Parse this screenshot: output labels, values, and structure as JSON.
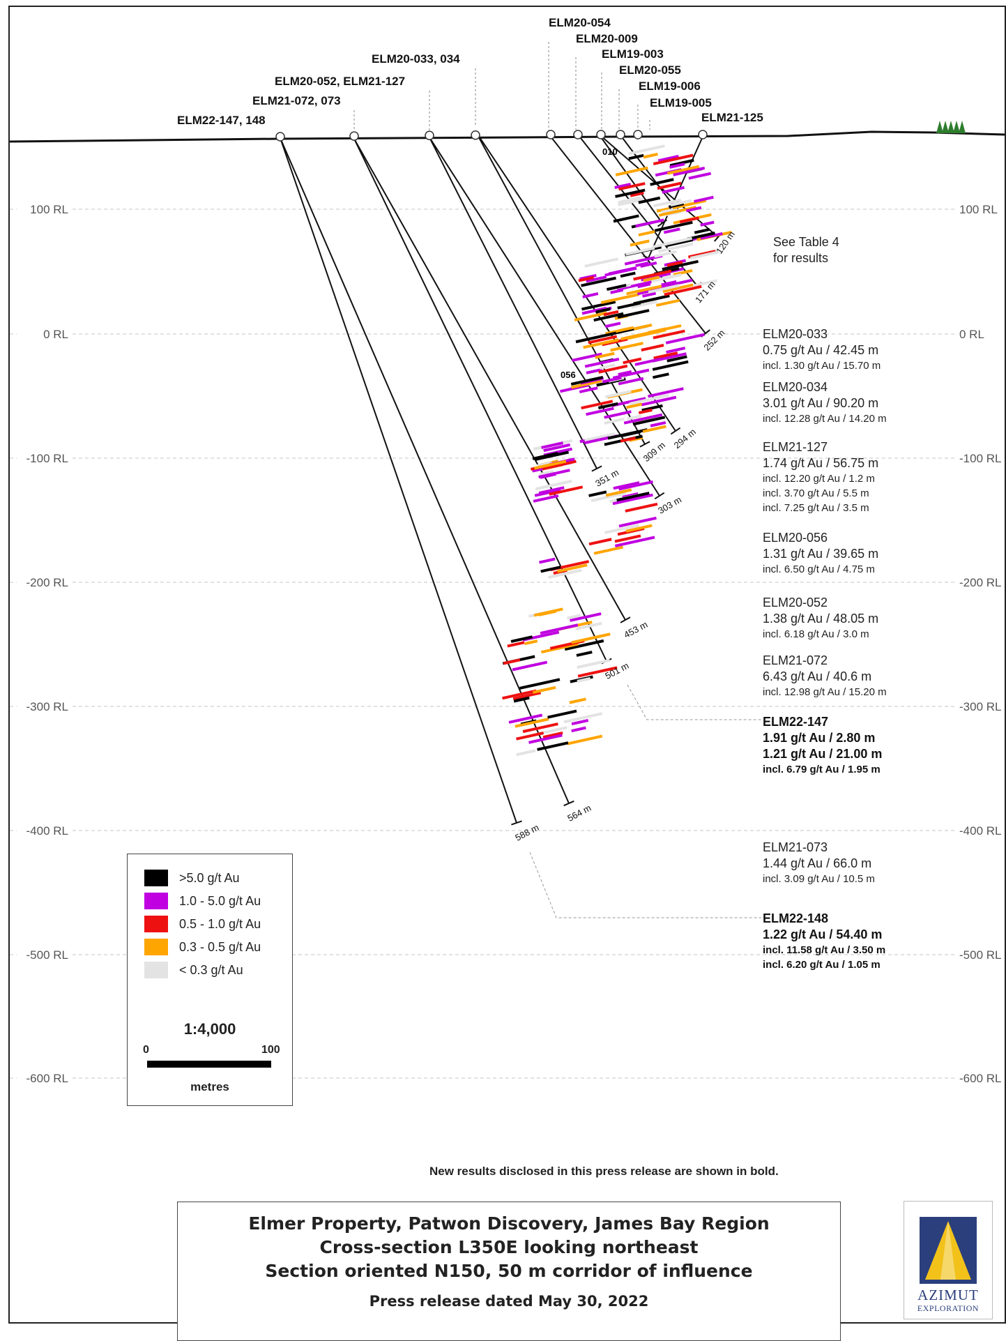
{
  "section": {
    "rl_labels": [
      "100 RL",
      "0 RL",
      "-100 RL",
      "-200 RL",
      "-300 RL",
      "-400 RL",
      "-500 RL",
      "-600 RL"
    ],
    "hole_labels": [
      "ELM20-054",
      "ELM20-009",
      "ELM20-033, 034",
      "ELM19-003",
      "ELM20-055",
      "ELM20-052, ELM21-127",
      "ELM19-006",
      "ELM21-072, 073",
      "ELM19-005",
      "ELM22-147, 148",
      "ELM21-125"
    ],
    "depth_labels": [
      "120 m",
      "171 m",
      "252 m",
      "294 m",
      "309 m",
      "303 m",
      "351 m",
      "453 m",
      "501 m",
      "564 m",
      "588 m"
    ],
    "small_labels": [
      "010",
      "056"
    ],
    "see_table": [
      "See Table 4",
      "for results"
    ]
  },
  "results": [
    {
      "hole": "ELM20-033",
      "lines": [
        "0.75 g/t Au / 42.45 m"
      ],
      "incl": [
        "incl. 1.30 g/t Au / 15.70 m"
      ],
      "bold": false
    },
    {
      "hole": "ELM20-034",
      "lines": [
        "3.01 g/t Au / 90.20 m"
      ],
      "incl": [
        "incl. 12.28 g/t Au / 14.20 m"
      ],
      "bold": false
    },
    {
      "hole": "ELM21-127",
      "lines": [
        "1.74 g/t Au / 56.75 m"
      ],
      "incl": [
        "incl. 12.20 g/t Au / 1.2 m",
        "incl. 3.70 g/t Au / 5.5 m",
        "incl. 7.25 g/t Au / 3.5 m"
      ],
      "bold": false
    },
    {
      "hole": "ELM20-056",
      "lines": [
        "1.31 g/t Au / 39.65 m"
      ],
      "incl": [
        "incl. 6.50 g/t Au / 4.75 m"
      ],
      "bold": false
    },
    {
      "hole": "ELM20-052",
      "lines": [
        "1.38 g/t Au / 48.05 m"
      ],
      "incl": [
        "incl. 6.18 g/t Au / 3.0 m"
      ],
      "bold": false
    },
    {
      "hole": "ELM21-072",
      "lines": [
        "6.43 g/t Au / 40.6 m"
      ],
      "incl": [
        "incl. 12.98 g/t Au / 15.20 m"
      ],
      "bold": false
    },
    {
      "hole": "ELM22-147",
      "lines": [
        "1.91 g/t Au / 2.80 m",
        "1.21 g/t Au / 21.00 m"
      ],
      "incl": [
        "incl. 6.79 g/t Au / 1.95 m"
      ],
      "bold": true
    },
    {
      "hole": "ELM21-073",
      "lines": [
        "1.44 g/t Au / 66.0 m"
      ],
      "incl": [
        "incl. 3.09 g/t Au / 10.5 m"
      ],
      "bold": false
    },
    {
      "hole": "ELM22-148",
      "lines": [
        "1.22 g/t Au / 54.40 m"
      ],
      "incl": [
        "incl. 11.58 g/t Au / 3.50 m",
        "incl. 6.20 g/t Au / 1.05 m"
      ],
      "bold": true
    }
  ],
  "legend": {
    "items": [
      {
        "label": ">5.0 g/t Au",
        "color": "#000000"
      },
      {
        "label": "1.0 - 5.0 g/t Au",
        "color": "#c000e0"
      },
      {
        "label": "0.5 - 1.0 g/t Au",
        "color": "#ee1111"
      },
      {
        "label": "0.3 - 0.5 g/t Au",
        "color": "#ffa500"
      },
      {
        "label": "< 0.3 g/t Au",
        "color": "#e3e3e3"
      }
    ],
    "scale": "1:4,000",
    "scale_start": "0",
    "scale_end": "100",
    "scale_unit": "metres"
  },
  "note": "New results disclosed in this press release are shown in bold.",
  "title": {
    "lines": [
      "Elmer Property, Patwon Discovery, James Bay Region",
      "Cross-section L350E looking northeast",
      "Section oriented N150, 50 m corridor of influence"
    ],
    "date": "Press release dated May 30, 2022"
  },
  "logo": {
    "name": "AZIMUT",
    "sub": "EXPLORATION"
  }
}
